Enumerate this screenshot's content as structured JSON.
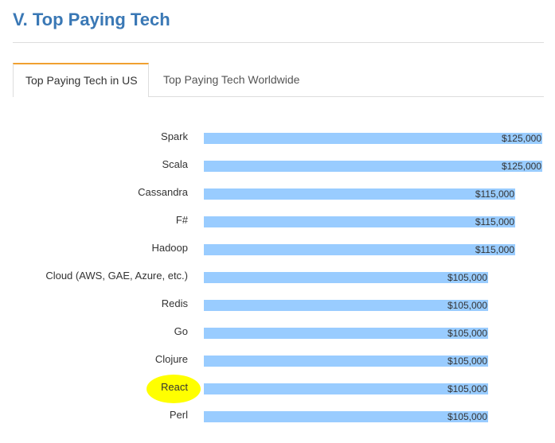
{
  "section": {
    "title": "V. Top Paying Tech"
  },
  "tabs": [
    {
      "label": "Top Paying Tech in US",
      "active": true
    },
    {
      "label": "Top Paying Tech Worldwide",
      "active": false
    }
  ],
  "colors": {
    "title": "#3a78b5",
    "bar": "#99ccff",
    "active_tab_accent": "#f0a030",
    "highlight": "#ffff00"
  },
  "highlighted_item": "React",
  "chart_data": {
    "type": "bar",
    "orientation": "horizontal",
    "categories": [
      "Spark",
      "Scala",
      "Cassandra",
      "F#",
      "Hadoop",
      "Cloud (AWS, GAE, Azure, etc.)",
      "Redis",
      "Go",
      "Clojure",
      "React",
      "Perl"
    ],
    "values": [
      125000,
      125000,
      115000,
      115000,
      115000,
      105000,
      105000,
      105000,
      105000,
      105000,
      105000
    ],
    "value_labels": [
      "$125,000",
      "$125,000",
      "$115,000",
      "$115,000",
      "$115,000",
      "$105,000",
      "$105,000",
      "$105,000",
      "$105,000",
      "$105,000",
      "$105,000"
    ],
    "xlim": [
      0,
      125000
    ],
    "title": "",
    "xlabel": "",
    "ylabel": "",
    "grid": false,
    "legend": "none"
  }
}
